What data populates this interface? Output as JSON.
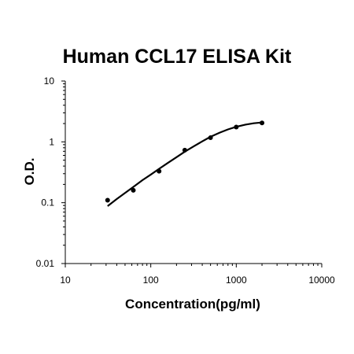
{
  "chart_data": {
    "type": "scatter",
    "title": "Human CCL17 ELISA Kit",
    "xlabel": "Concentration(pg/ml)",
    "ylabel": "O.D.",
    "x_scale": "log",
    "y_scale": "log",
    "xlim": [
      10,
      10000
    ],
    "ylim": [
      0.01,
      10
    ],
    "x_ticks": [
      "10",
      "100",
      "1000",
      "10000"
    ],
    "y_ticks": [
      "0.01",
      "0.1",
      "1",
      "10"
    ],
    "grid": false,
    "legend": "none",
    "series": [
      {
        "x": [
          31.25,
          62.5,
          125,
          250,
          500,
          1000,
          2000
        ],
        "y": [
          0.11,
          0.16,
          0.33,
          0.73,
          1.17,
          1.75,
          2.05
        ]
      }
    ],
    "fit_curve": {
      "x": [
        31.25,
        40,
        50,
        62.5,
        80,
        100,
        125,
        160,
        200,
        250,
        320,
        400,
        500,
        640,
        800,
        1000,
        1280,
        1600,
        2000
      ],
      "y": [
        0.088,
        0.115,
        0.145,
        0.182,
        0.235,
        0.29,
        0.36,
        0.455,
        0.56,
        0.69,
        0.85,
        1.02,
        1.21,
        1.42,
        1.6,
        1.77,
        1.92,
        2.02,
        2.08
      ]
    },
    "colors": {
      "axis": "#000000",
      "marker": "#000000",
      "curve": "#000000"
    }
  }
}
